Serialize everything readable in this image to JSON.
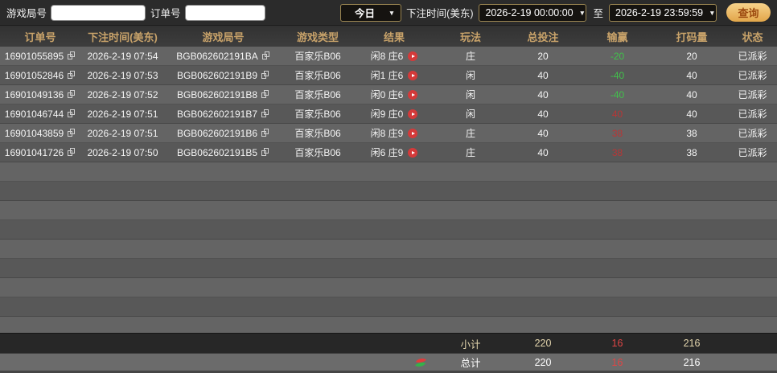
{
  "filter_bar": {
    "game_round_label": "游戏局号",
    "game_round_input_value": "",
    "order_no_label": "订单号",
    "order_no_input_value": "",
    "quick_range_value": "今日",
    "bet_time_label": "下注时间(美东)",
    "date_from": "2026-2-19 00:00:00",
    "to_label": "至",
    "date_to": "2026-2-19 23:59:59",
    "search_button": "查询"
  },
  "table": {
    "columns": [
      "订单号",
      "下注时间(美东)",
      "游戏局号",
      "游戏类型",
      "结果",
      "玩法",
      "总投注",
      "输赢",
      "打码量",
      "状态"
    ],
    "rows": [
      {
        "order_id": "16901055895",
        "bet_time": "2026-2-19 07:54",
        "round_id": "BGB062602191BA",
        "game_type": "百家乐B06",
        "result": "闲8 庄6",
        "play": "庄",
        "total_bet": "20",
        "win_loss": "-20",
        "win_loss_color": "green",
        "turnover": "20",
        "status": "已派彩"
      },
      {
        "order_id": "16901052846",
        "bet_time": "2026-2-19 07:53",
        "round_id": "BGB062602191B9",
        "game_type": "百家乐B06",
        "result": "闲1 庄6",
        "play": "闲",
        "total_bet": "40",
        "win_loss": "-40",
        "win_loss_color": "green",
        "turnover": "40",
        "status": "已派彩"
      },
      {
        "order_id": "16901049136",
        "bet_time": "2026-2-19 07:52",
        "round_id": "BGB062602191B8",
        "game_type": "百家乐B06",
        "result": "闲0 庄6",
        "play": "闲",
        "total_bet": "40",
        "win_loss": "-40",
        "win_loss_color": "green",
        "turnover": "40",
        "status": "已派彩"
      },
      {
        "order_id": "16901046744",
        "bet_time": "2026-2-19 07:51",
        "round_id": "BGB062602191B7",
        "game_type": "百家乐B06",
        "result": "闲9 庄0",
        "play": "闲",
        "total_bet": "40",
        "win_loss": "40",
        "win_loss_color": "red",
        "turnover": "40",
        "status": "已派彩"
      },
      {
        "order_id": "16901043859",
        "bet_time": "2026-2-19 07:51",
        "round_id": "BGB062602191B6",
        "game_type": "百家乐B06",
        "result": "闲8 庄9",
        "play": "庄",
        "total_bet": "40",
        "win_loss": "38",
        "win_loss_color": "red",
        "turnover": "38",
        "status": "已派彩"
      },
      {
        "order_id": "16901041726",
        "bet_time": "2026-2-19 07:50",
        "round_id": "BGB062602191B5",
        "game_type": "百家乐B06",
        "result": "闲6 庄9",
        "play": "庄",
        "total_bet": "40",
        "win_loss": "38",
        "win_loss_color": "red",
        "turnover": "38",
        "status": "已派彩"
      }
    ],
    "empty_row_count": 9
  },
  "summary": {
    "subtotal_label": "小计",
    "subtotal": {
      "total_bet": "220",
      "win_loss": "16",
      "turnover": "216"
    },
    "total_label": "总计",
    "total": {
      "total_bet": "220",
      "win_loss": "16",
      "turnover": "216"
    }
  },
  "colors": {
    "gold": "#c9a36a",
    "gold_border": "#9a8551",
    "green": "#41c14b",
    "red": "#b83636",
    "red_bright": "#e04545",
    "cream": "#e3d5ad",
    "button_gold_light": "#f7d28a",
    "button_gold_dark": "#e2a64a",
    "button_text": "#9c4a10"
  }
}
